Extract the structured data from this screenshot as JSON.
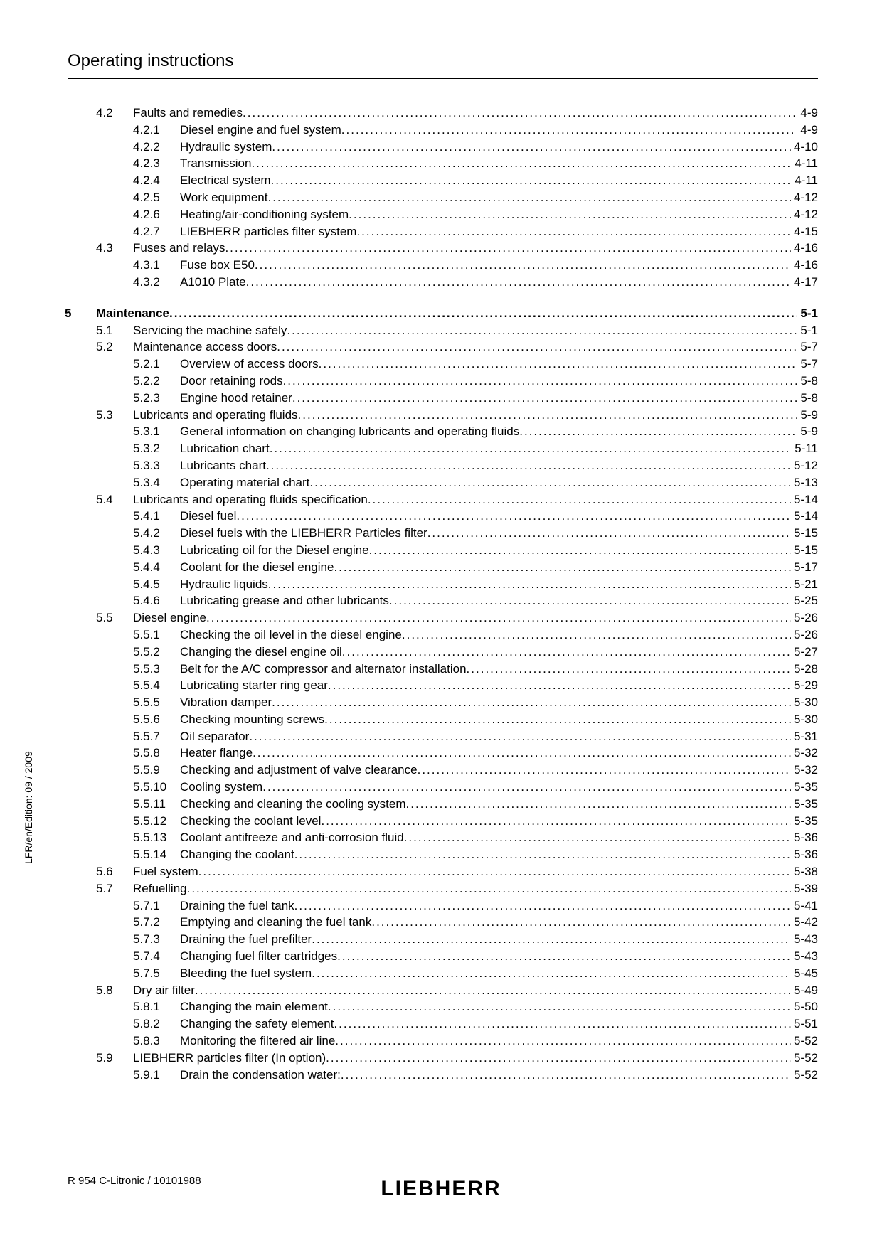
{
  "header": {
    "title": "Operating instructions"
  },
  "sidebar": {
    "text": "LFR/en/Edition: 09 / 2009"
  },
  "footer": {
    "left": "R 954 C-Litronic / 10101988",
    "logo": "LIEBHERR"
  },
  "toc": [
    {
      "chapter": "",
      "section": "4.2",
      "sub": "",
      "title": "Faults and remedies",
      "page": "4-9",
      "bold": false
    },
    {
      "chapter": "",
      "section": "",
      "sub": "4.2.1",
      "title": "Diesel engine and fuel system",
      "page": "4-9",
      "bold": false
    },
    {
      "chapter": "",
      "section": "",
      "sub": "4.2.2",
      "title": "Hydraulic system",
      "page": "4-10",
      "bold": false
    },
    {
      "chapter": "",
      "section": "",
      "sub": "4.2.3",
      "title": "Transmission",
      "page": "4-11",
      "bold": false
    },
    {
      "chapter": "",
      "section": "",
      "sub": "4.2.4",
      "title": "Electrical system",
      "page": "4-11",
      "bold": false
    },
    {
      "chapter": "",
      "section": "",
      "sub": "4.2.5",
      "title": "Work equipment",
      "page": "4-12",
      "bold": false
    },
    {
      "chapter": "",
      "section": "",
      "sub": "4.2.6",
      "title": "Heating/air-conditioning system",
      "page": "4-12",
      "bold": false
    },
    {
      "chapter": "",
      "section": "",
      "sub": "4.2.7",
      "title": "LIEBHERR particles filter system",
      "page": "4-15",
      "bold": false
    },
    {
      "chapter": "",
      "section": "4.3",
      "sub": "",
      "title": "Fuses and relays",
      "page": "4-16",
      "bold": false
    },
    {
      "chapter": "",
      "section": "",
      "sub": "4.3.1",
      "title": "Fuse box E50",
      "page": "4-16",
      "bold": false
    },
    {
      "chapter": "",
      "section": "",
      "sub": "4.3.2",
      "title": "A1010 Plate",
      "page": "4-17",
      "bold": false
    },
    {
      "spacer": true
    },
    {
      "chapter": "5",
      "section": "",
      "sub": "",
      "title": "Maintenance",
      "page": "5-1",
      "bold": true
    },
    {
      "chapter": "",
      "section": "5.1",
      "sub": "",
      "title": "Servicing the machine safely",
      "page": "5-1",
      "bold": false
    },
    {
      "chapter": "",
      "section": "5.2",
      "sub": "",
      "title": "Maintenance access doors",
      "page": "5-7",
      "bold": false
    },
    {
      "chapter": "",
      "section": "",
      "sub": "5.2.1",
      "title": "Overview of access doors",
      "page": "5-7",
      "bold": false
    },
    {
      "chapter": "",
      "section": "",
      "sub": "5.2.2",
      "title": "Door retaining rods",
      "page": "5-8",
      "bold": false
    },
    {
      "chapter": "",
      "section": "",
      "sub": "5.2.3",
      "title": "Engine hood retainer",
      "page": "5-8",
      "bold": false
    },
    {
      "chapter": "",
      "section": "5.3",
      "sub": "",
      "title": "Lubricants and operating fluids",
      "page": "5-9",
      "bold": false
    },
    {
      "chapter": "",
      "section": "",
      "sub": "5.3.1",
      "title": "General information on changing lubricants and operating fluids",
      "page": "5-9",
      "bold": false
    },
    {
      "chapter": "",
      "section": "",
      "sub": "5.3.2",
      "title": "Lubrication chart",
      "page": "5-11",
      "bold": false
    },
    {
      "chapter": "",
      "section": "",
      "sub": "5.3.3",
      "title": "Lubricants chart",
      "page": "5-12",
      "bold": false
    },
    {
      "chapter": "",
      "section": "",
      "sub": "5.3.4",
      "title": "Operating material chart",
      "page": "5-13",
      "bold": false
    },
    {
      "chapter": "",
      "section": "5.4",
      "sub": "",
      "title": "Lubricants and operating fluids specification",
      "page": "5-14",
      "bold": false
    },
    {
      "chapter": "",
      "section": "",
      "sub": "5.4.1",
      "title": "Diesel fuel",
      "page": "5-14",
      "bold": false
    },
    {
      "chapter": "",
      "section": "",
      "sub": "5.4.2",
      "title": "Diesel fuels with the LIEBHERR Particles filter",
      "page": "5-15",
      "bold": false
    },
    {
      "chapter": "",
      "section": "",
      "sub": "5.4.3",
      "title": "Lubricating oil for the Diesel engine",
      "page": "5-15",
      "bold": false
    },
    {
      "chapter": "",
      "section": "",
      "sub": "5.4.4",
      "title": "Coolant for the diesel engine",
      "page": "5-17",
      "bold": false
    },
    {
      "chapter": "",
      "section": "",
      "sub": "5.4.5",
      "title": "Hydraulic liquids",
      "page": "5-21",
      "bold": false
    },
    {
      "chapter": "",
      "section": "",
      "sub": "5.4.6",
      "title": "Lubricating grease and other lubricants",
      "page": "5-25",
      "bold": false
    },
    {
      "chapter": "",
      "section": "5.5",
      "sub": "",
      "title": "Diesel engine",
      "page": "5-26",
      "bold": false
    },
    {
      "chapter": "",
      "section": "",
      "sub": "5.5.1",
      "title": "Checking the oil level in the diesel engine",
      "page": "5-26",
      "bold": false
    },
    {
      "chapter": "",
      "section": "",
      "sub": "5.5.2",
      "title": "Changing the diesel engine oil",
      "page": "5-27",
      "bold": false
    },
    {
      "chapter": "",
      "section": "",
      "sub": "5.5.3",
      "title": "Belt for the A/C compressor and alternator installation",
      "page": "5-28",
      "bold": false
    },
    {
      "chapter": "",
      "section": "",
      "sub": "5.5.4",
      "title": "Lubricating starter ring gear",
      "page": "5-29",
      "bold": false
    },
    {
      "chapter": "",
      "section": "",
      "sub": "5.5.5",
      "title": "Vibration damper",
      "page": "5-30",
      "bold": false
    },
    {
      "chapter": "",
      "section": "",
      "sub": "5.5.6",
      "title": "Checking mounting screws",
      "page": "5-30",
      "bold": false
    },
    {
      "chapter": "",
      "section": "",
      "sub": "5.5.7",
      "title": "Oil separator",
      "page": "5-31",
      "bold": false
    },
    {
      "chapter": "",
      "section": "",
      "sub": "5.5.8",
      "title": "Heater flange",
      "page": "5-32",
      "bold": false
    },
    {
      "chapter": "",
      "section": "",
      "sub": "5.5.9",
      "title": "Checking and adjustment of valve clearance",
      "page": "5-32",
      "bold": false
    },
    {
      "chapter": "",
      "section": "",
      "sub": "5.5.10",
      "title": "Cooling system",
      "page": "5-35",
      "bold": false
    },
    {
      "chapter": "",
      "section": "",
      "sub": "5.5.11",
      "title": "Checking and cleaning the cooling system",
      "page": "5-35",
      "bold": false
    },
    {
      "chapter": "",
      "section": "",
      "sub": "5.5.12",
      "title": "Checking the coolant level",
      "page": "5-35",
      "bold": false
    },
    {
      "chapter": "",
      "section": "",
      "sub": "5.5.13",
      "title": "Coolant antifreeze and anti-corrosion fluid",
      "page": "5-36",
      "bold": false
    },
    {
      "chapter": "",
      "section": "",
      "sub": "5.5.14",
      "title": "Changing the coolant",
      "page": "5-36",
      "bold": false
    },
    {
      "chapter": "",
      "section": "5.6",
      "sub": "",
      "title": "Fuel system",
      "page": "5-38",
      "bold": false
    },
    {
      "chapter": "",
      "section": "5.7",
      "sub": "",
      "title": "Refuelling",
      "page": "5-39",
      "bold": false
    },
    {
      "chapter": "",
      "section": "",
      "sub": "5.7.1",
      "title": "Draining the fuel tank",
      "page": "5-41",
      "bold": false
    },
    {
      "chapter": "",
      "section": "",
      "sub": "5.7.2",
      "title": "Emptying and cleaning the fuel tank",
      "page": "5-42",
      "bold": false
    },
    {
      "chapter": "",
      "section": "",
      "sub": "5.7.3",
      "title": "Draining the fuel prefilter",
      "page": "5-43",
      "bold": false
    },
    {
      "chapter": "",
      "section": "",
      "sub": "5.7.4",
      "title": "Changing fuel filter cartridges",
      "page": "5-43",
      "bold": false
    },
    {
      "chapter": "",
      "section": "",
      "sub": "5.7.5",
      "title": "Bleeding the fuel system",
      "page": "5-45",
      "bold": false
    },
    {
      "chapter": "",
      "section": "5.8",
      "sub": "",
      "title": "Dry air filter",
      "page": "5-49",
      "bold": false
    },
    {
      "chapter": "",
      "section": "",
      "sub": "5.8.1",
      "title": "Changing the main element",
      "page": "5-50",
      "bold": false
    },
    {
      "chapter": "",
      "section": "",
      "sub": "5.8.2",
      "title": "Changing the safety element",
      "page": "5-51",
      "bold": false
    },
    {
      "chapter": "",
      "section": "",
      "sub": "5.8.3",
      "title": "Monitoring the filtered air line",
      "page": "5-52",
      "bold": false
    },
    {
      "chapter": "",
      "section": "5.9",
      "sub": "",
      "title": "LIEBHERR particles filter (In option)",
      "page": "5-52",
      "bold": false
    },
    {
      "chapter": "",
      "section": "",
      "sub": "5.9.1",
      "title": "Drain the condensation water:",
      "page": "5-52",
      "bold": false
    }
  ]
}
